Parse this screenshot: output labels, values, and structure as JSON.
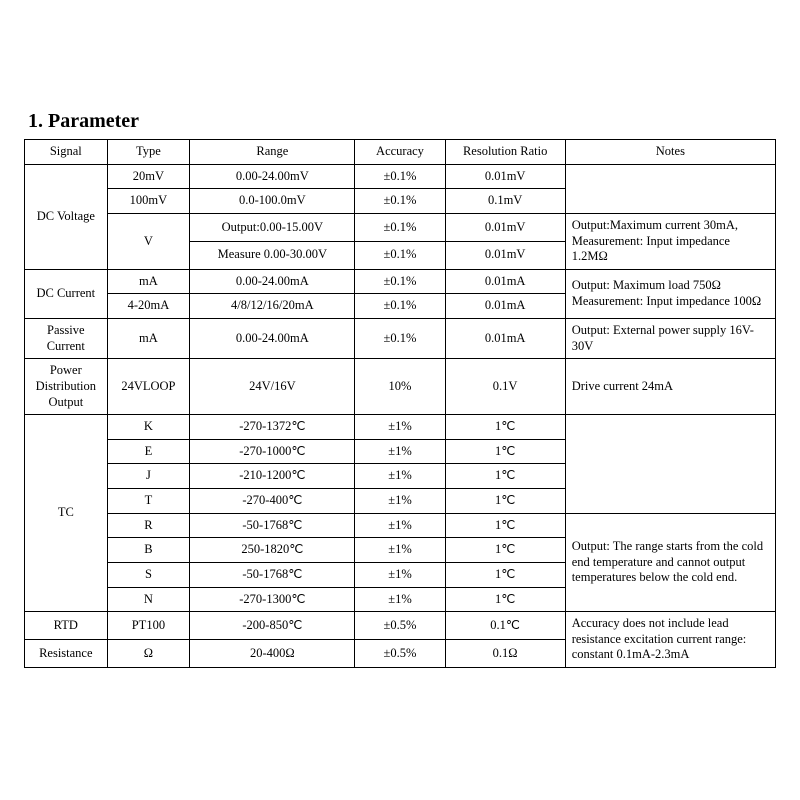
{
  "heading": "1. Parameter",
  "table": {
    "columns": {
      "signal": "Signal",
      "type": "Type",
      "range": "Range",
      "accuracy": "Accuracy",
      "resolution": "Resolution Ratio",
      "notes": "Notes"
    },
    "col_widths_pct": {
      "signal": 11,
      "type": 11,
      "range": 22,
      "accuracy": 12,
      "resolution": 16,
      "notes": 28
    },
    "font_size_pt": 12.5,
    "border_color": "#000000",
    "text_color": "#000000",
    "background_color": "#ffffff",
    "sections": {
      "dc_voltage": {
        "signal": "DC Voltage",
        "rows": [
          {
            "type": "20mV",
            "range": "0.00-24.00mV",
            "accuracy": "±0.1%",
            "resolution": "0.01mV"
          },
          {
            "type": "100mV",
            "range": "0.0-100.0mV",
            "accuracy": "±0.1%",
            "resolution": "0.1mV"
          },
          {
            "type": "V",
            "range": "Output:0.00-15.00V",
            "accuracy": "±0.1%",
            "resolution": "0.01mV"
          },
          {
            "type": "",
            "range": "Measure 0.00-30.00V",
            "accuracy": "±0.1%",
            "resolution": "0.01mV"
          }
        ],
        "notes": "Output:Maximum current 30mA, Measurement: Input impedance 1.2MΩ"
      },
      "dc_current": {
        "signal": "DC Current",
        "rows": [
          {
            "type": "mA",
            "range": "0.00-24.00mA",
            "accuracy": "±0.1%",
            "resolution": "0.01mA"
          },
          {
            "type": "4-20mA",
            "range": "4/8/12/16/20mA",
            "accuracy": "±0.1%",
            "resolution": "0.01mA"
          }
        ],
        "notes": "Output: Maximum load 750Ω Measurement: Input impedance 100Ω"
      },
      "passive_current": {
        "signal": "Passive Current",
        "rows": [
          {
            "type": "mA",
            "range": "0.00-24.00mA",
            "accuracy": "±0.1%",
            "resolution": "0.01mA"
          }
        ],
        "notes": "Output: External power supply 16V-30V"
      },
      "power_dist": {
        "signal": "Power Distribution Output",
        "rows": [
          {
            "type": "24VLOOP",
            "range": "24V/16V",
            "accuracy": "10%",
            "resolution": "0.1V"
          }
        ],
        "notes": "Drive current 24mA"
      },
      "tc": {
        "signal": "TC",
        "rows": [
          {
            "type": "K",
            "range": "-270-1372℃",
            "accuracy": "±1%",
            "resolution": "1℃"
          },
          {
            "type": "E",
            "range": "-270-1000℃",
            "accuracy": "±1%",
            "resolution": "1℃"
          },
          {
            "type": "J",
            "range": "-210-1200℃",
            "accuracy": "±1%",
            "resolution": "1℃"
          },
          {
            "type": "T",
            "range": "-270-400℃",
            "accuracy": "±1%",
            "resolution": "1℃"
          },
          {
            "type": "R",
            "range": "-50-1768℃",
            "accuracy": "±1%",
            "resolution": "1℃"
          },
          {
            "type": "B",
            "range": "250-1820℃",
            "accuracy": "±1%",
            "resolution": "1℃"
          },
          {
            "type": "S",
            "range": "-50-1768℃",
            "accuracy": "±1%",
            "resolution": "1℃"
          },
          {
            "type": "N",
            "range": "-270-1300℃",
            "accuracy": "±1%",
            "resolution": "1℃"
          }
        ],
        "notes": "Output: The range starts from the cold end temperature and cannot output temperatures below the cold end."
      },
      "rtd": {
        "signal": "RTD",
        "rows": [
          {
            "type": "PT100",
            "range": "-200-850℃",
            "accuracy": "±0.5%",
            "resolution": "0.1℃"
          }
        ]
      },
      "resistance": {
        "signal": "Resistance",
        "rows": [
          {
            "type": "Ω",
            "range": "20-400Ω",
            "accuracy": "±0.5%",
            "resolution": "0.1Ω"
          }
        ],
        "notes": "Accuracy does not include lead resistance excitation current range: constant 0.1mA-2.3mA"
      }
    }
  }
}
